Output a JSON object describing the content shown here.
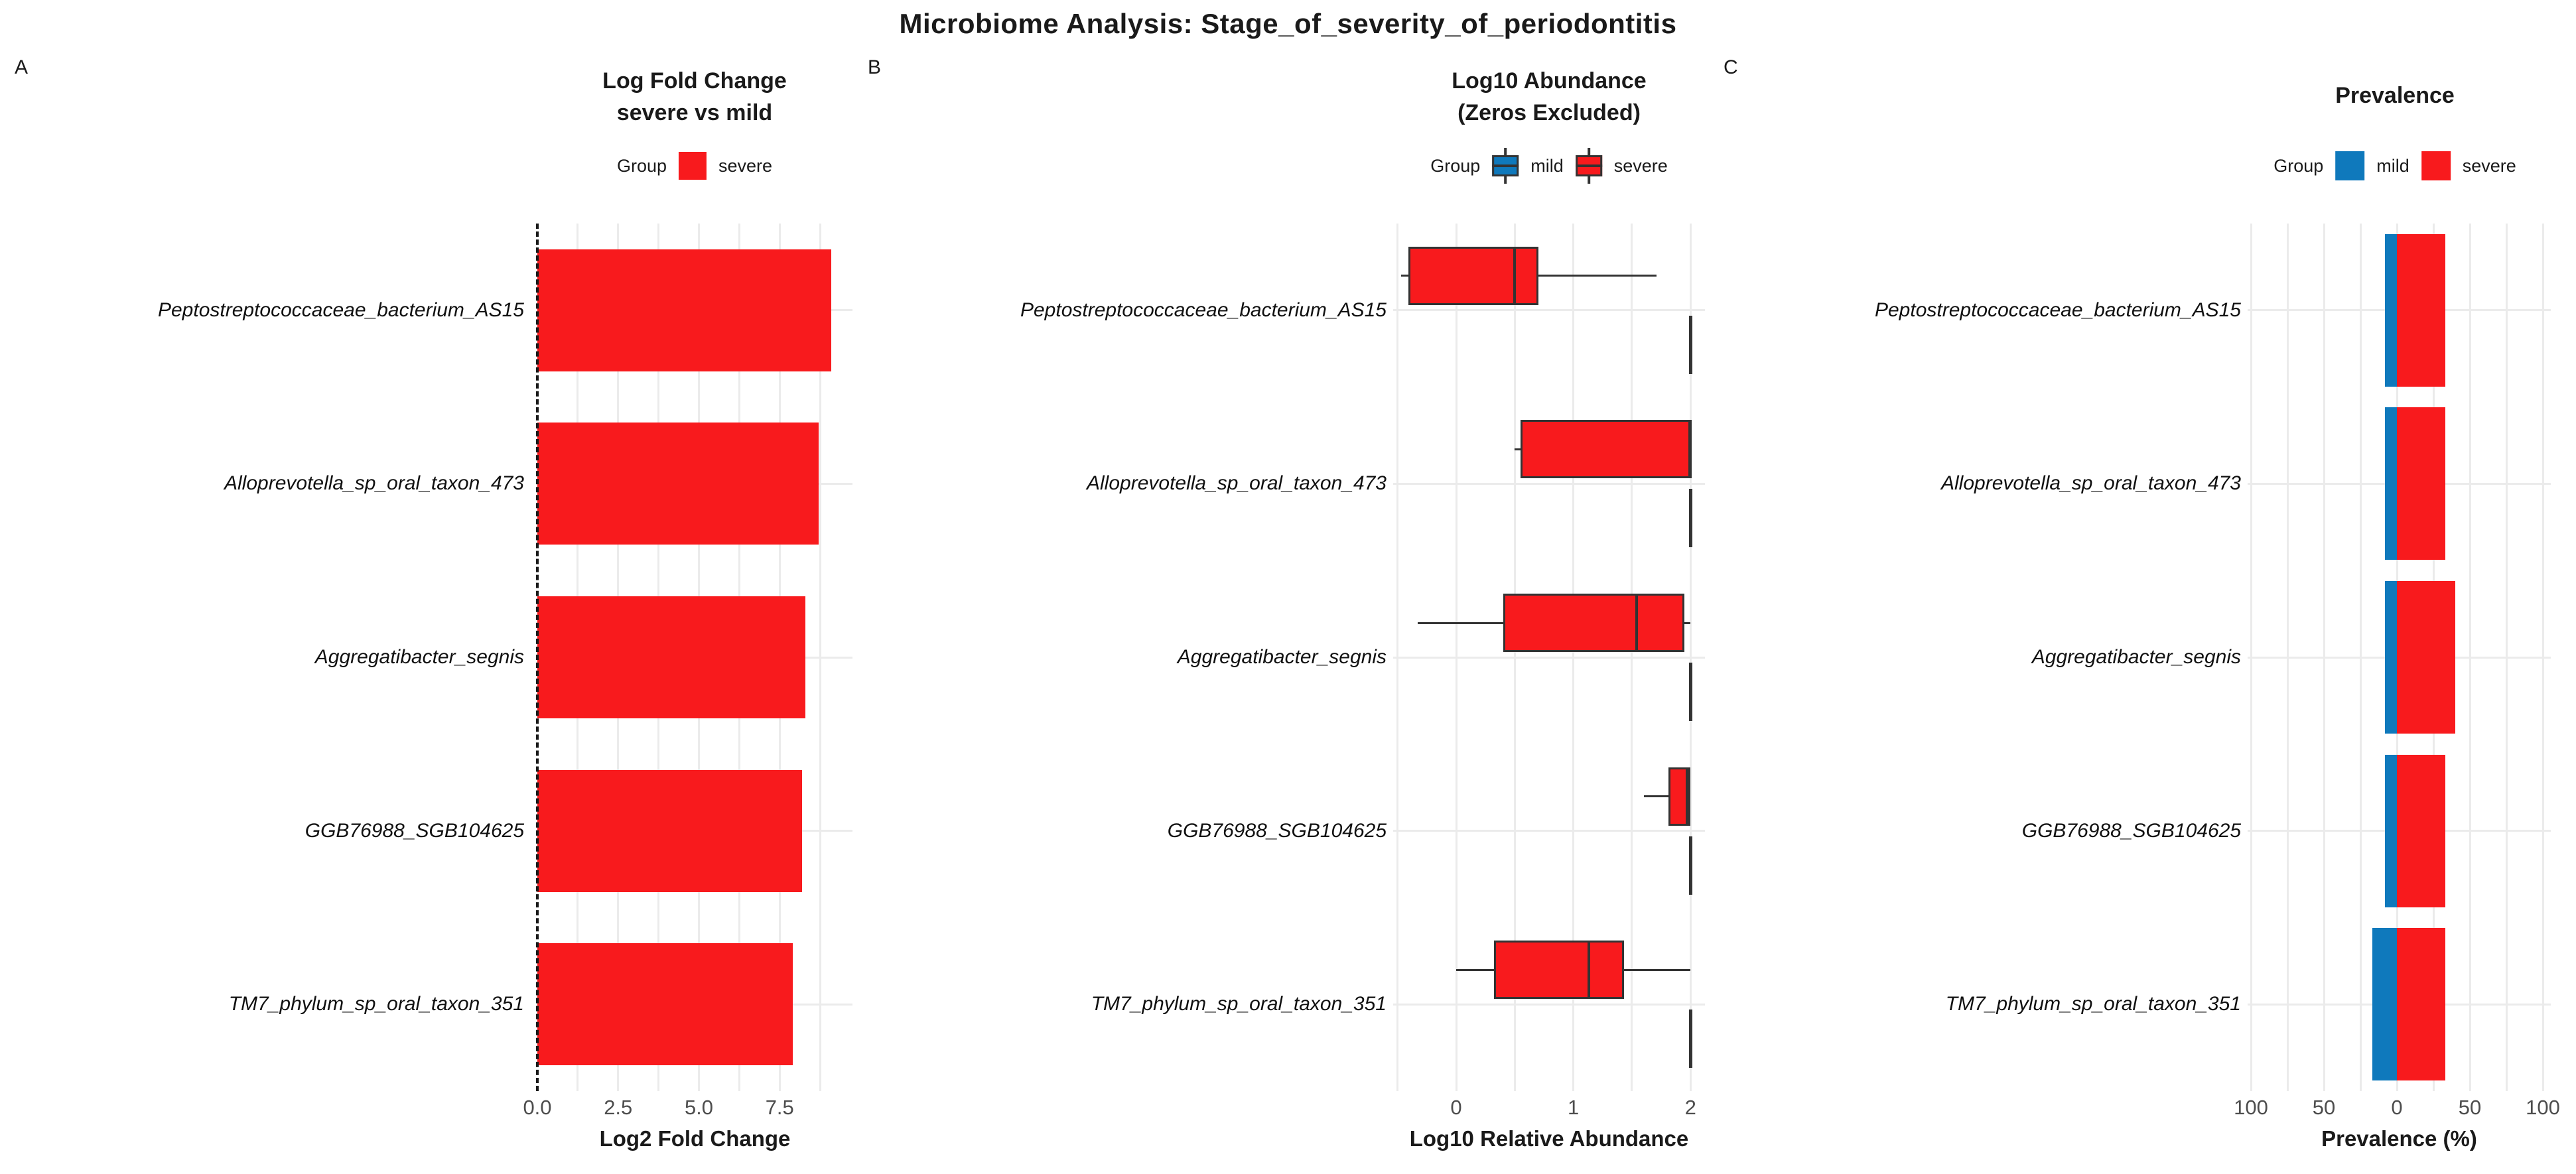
{
  "figure_title": "Microbiome Analysis: Stage_of_severity_of_periodontitis",
  "colors": {
    "severe": "#f81a1d",
    "mild": "#0f79bc",
    "box_border": "#333333",
    "grid": "#ebebeb",
    "tick_text": "#4d4d4d",
    "zero_line": "#1a1a1a"
  },
  "taxa": [
    "Peptostreptococcaceae_bacterium_AS15",
    "Alloprevotella_sp_oral_taxon_473",
    "Aggregatibacter_segnis",
    "GGB76988_SGB104625",
    "TM7_phylum_sp_oral_taxon_351"
  ],
  "chart_data": [
    {
      "id": "A",
      "letter": "A",
      "type": "bar",
      "title_lines": [
        "Log Fold Change",
        "severe vs mild"
      ],
      "legend": {
        "label": "Group",
        "items": [
          {
            "name": "severe",
            "color_key": "severe"
          }
        ]
      },
      "xlabel": "Log2 Fold Change",
      "xlim": [
        0,
        9.75
      ],
      "xticks": [
        {
          "v": 0,
          "label": "0.0"
        },
        {
          "v": 2.5,
          "label": "2.5"
        },
        {
          "v": 5,
          "label": "5.0"
        },
        {
          "v": 7.5,
          "label": "7.5"
        }
      ],
      "zero_line": "dashed",
      "categories": [
        "Peptostreptococcaceae_bacterium_AS15",
        "Alloprevotella_sp_oral_taxon_473",
        "Aggregatibacter_segnis",
        "GGB76988_SGB104625",
        "TM7_phylum_sp_oral_taxon_351"
      ],
      "values": [
        9.1,
        8.7,
        8.3,
        8.2,
        7.9
      ],
      "series_group": "severe"
    },
    {
      "id": "B",
      "letter": "B",
      "type": "boxplot",
      "title_lines": [
        "Log10 Abundance",
        "(Zeros Excluded)"
      ],
      "legend": {
        "label": "Group",
        "items": [
          {
            "name": "mild",
            "color_key": "mild"
          },
          {
            "name": "severe",
            "color_key": "severe"
          }
        ]
      },
      "xlabel": "Log10 Relative Abundance",
      "xlim": [
        -0.55,
        2.12
      ],
      "xticks": [
        {
          "v": 0,
          "label": "0"
        },
        {
          "v": 1,
          "label": "1"
        },
        {
          "v": 2,
          "label": "2"
        }
      ],
      "categories": [
        "Peptostreptococcaceae_bacterium_AS15",
        "Alloprevotella_sp_oral_taxon_473",
        "Aggregatibacter_segnis",
        "GGB76988_SGB104625",
        "TM7_phylum_sp_oral_taxon_351"
      ],
      "series": [
        {
          "group": "severe",
          "color_key": "severe",
          "boxes": [
            {
              "min": -0.47,
              "q1": -0.41,
              "median": 0.5,
              "q3": 0.7,
              "max": 1.71
            },
            {
              "min": 0.5,
              "q1": 0.55,
              "median": 2.0,
              "q3": 2.0,
              "max": 2.0
            },
            {
              "min": -0.33,
              "q1": 0.4,
              "median": 1.54,
              "q3": 1.95,
              "max": 2.0
            },
            {
              "min": 1.6,
              "q1": 1.81,
              "median": 1.97,
              "q3": 2.0,
              "max": 2.0
            },
            {
              "min": 0.0,
              "q1": 0.32,
              "median": 1.13,
              "q3": 1.43,
              "max": 2.0
            }
          ]
        },
        {
          "group": "mild",
          "color_key": "mild",
          "boxes": [
            {
              "min": 2.0,
              "q1": 2.0,
              "median": 2.0,
              "q3": 2.0,
              "max": 2.0
            },
            {
              "min": 2.0,
              "q1": 2.0,
              "median": 2.0,
              "q3": 2.0,
              "max": 2.0
            },
            {
              "min": 2.0,
              "q1": 2.0,
              "median": 2.0,
              "q3": 2.0,
              "max": 2.0
            },
            {
              "min": 2.0,
              "q1": 2.0,
              "median": 2.0,
              "q3": 2.0,
              "max": 2.0
            },
            {
              "min": 2.0,
              "q1": 2.0,
              "median": 2.0,
              "q3": 2.0,
              "max": 2.0
            }
          ]
        }
      ]
    },
    {
      "id": "C",
      "letter": "C",
      "type": "diverging_bar",
      "title_lines": [
        "Prevalence"
      ],
      "legend": {
        "label": "Group",
        "items": [
          {
            "name": "mild",
            "color_key": "mild"
          },
          {
            "name": "severe",
            "color_key": "severe"
          }
        ]
      },
      "xlabel": "Prevalence (%)",
      "xlim": [
        -110,
        110
      ],
      "xticks": [
        {
          "v": -100,
          "label": "100"
        },
        {
          "v": -50,
          "label": "50"
        },
        {
          "v": 0,
          "label": "0"
        },
        {
          "v": 50,
          "label": "50"
        },
        {
          "v": 100,
          "label": "100"
        }
      ],
      "categories": [
        "Peptostreptococcaceae_bacterium_AS15",
        "Alloprevotella_sp_oral_taxon_473",
        "Aggregatibacter_segnis",
        "GGB76988_SGB104625",
        "TM7_phylum_sp_oral_taxon_351"
      ],
      "series": [
        {
          "name": "mild",
          "color_key": "mild",
          "direction": "left",
          "values": [
            8.3,
            8.3,
            8.3,
            8.3,
            16.7
          ]
        },
        {
          "name": "severe",
          "color_key": "severe",
          "direction": "right",
          "values": [
            33.3,
            33.3,
            40.0,
            33.3,
            33.3
          ]
        }
      ]
    }
  ]
}
